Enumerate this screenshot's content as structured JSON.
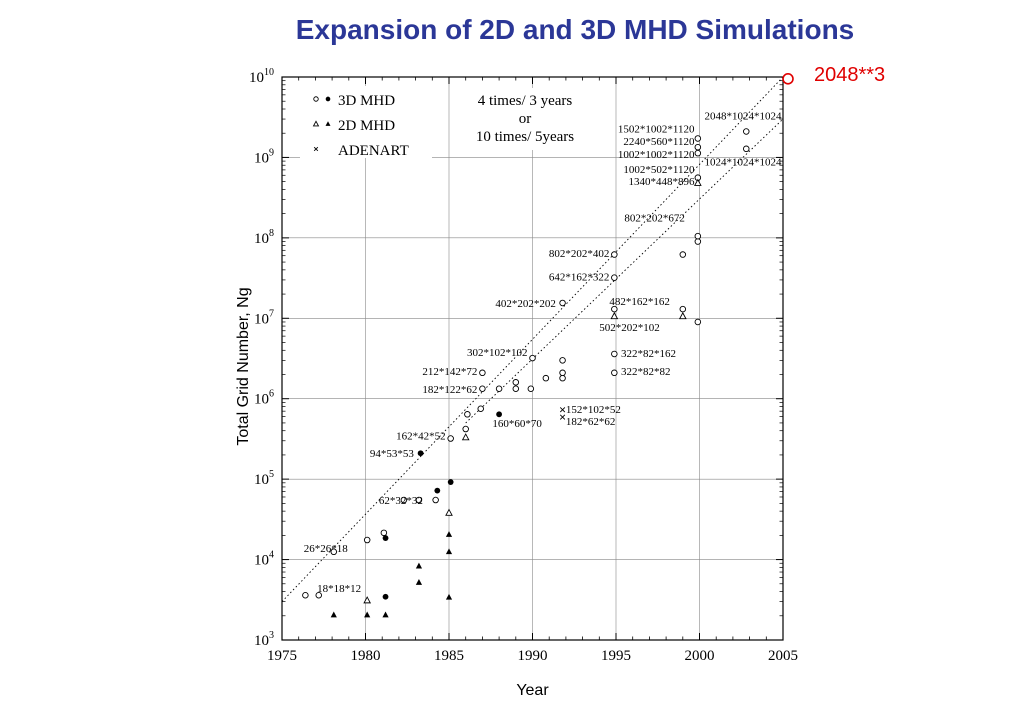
{
  "slide": {
    "title": "Expansion of 2D and 3D MHD Simulations",
    "callout": "2048**3"
  },
  "chart_data": {
    "type": "scatter",
    "title": "Expansion of 2D and 3D MHD Simulations",
    "xlabel": "Year",
    "ylabel": "Total Grid Number, Ng",
    "xlim": [
      1975,
      2005
    ],
    "ylim": [
      1000,
      10000000000
    ],
    "yscale": "log",
    "grid": true,
    "legend_position": "top-left",
    "x_ticks": [
      "1975",
      "1980",
      "1985",
      "1990",
      "1995",
      "2000",
      "2005"
    ],
    "y_ticks": [
      {
        "base": "10",
        "exp": "3",
        "value": 1000
      },
      {
        "base": "10",
        "exp": "4",
        "value": 10000
      },
      {
        "base": "10",
        "exp": "5",
        "value": 100000
      },
      {
        "base": "10",
        "exp": "6",
        "value": 1000000
      },
      {
        "base": "10",
        "exp": "7",
        "value": 10000000
      },
      {
        "base": "10",
        "exp": "8",
        "value": 100000000
      },
      {
        "base": "10",
        "exp": "9",
        "value": 1000000000
      },
      {
        "base": "10",
        "exp": "10",
        "value": 10000000000
      }
    ],
    "legend": [
      {
        "label": "3D MHD",
        "symbols": [
          "open-circle",
          "filled-circle"
        ]
      },
      {
        "label": "2D MHD",
        "symbols": [
          "open-triangle",
          "filled-triangle"
        ]
      },
      {
        "label": "ADENART",
        "symbols": [
          "cross"
        ]
      }
    ],
    "annotation": [
      "4 times/ 3 years",
      "or",
      "10 times/ 5years"
    ],
    "trend_lines": [
      {
        "x": [
          1975,
          2005
        ],
        "y": [
          3000,
          10000000000
        ]
      },
      {
        "x": [
          1986,
          2005
        ],
        "y": [
          500000,
          3000000000
        ]
      }
    ],
    "series": [
      {
        "name": "3D MHD",
        "marker": "open-circle",
        "points": [
          [
            1976.4,
            3600
          ],
          [
            1977.2,
            3600
          ],
          [
            1978.1,
            12500
          ],
          [
            1980.1,
            17500
          ],
          [
            1981.1,
            21500
          ],
          [
            1982.3,
            55000
          ],
          [
            1983.2,
            55000
          ],
          [
            1984.2,
            55000
          ],
          [
            1985.1,
            320000
          ],
          [
            1986.0,
            420000
          ],
          [
            1986.1,
            640000
          ],
          [
            1986.9,
            750000
          ],
          [
            1987.0,
            1330000
          ],
          [
            1987.0,
            2100000
          ],
          [
            1988.0,
            1330000
          ],
          [
            1989.0,
            1600000
          ],
          [
            1989.0,
            1330000
          ],
          [
            1989.9,
            1330000
          ],
          [
            1990.0,
            3200000
          ],
          [
            1990.8,
            1800000
          ],
          [
            1991.8,
            1800000
          ],
          [
            1991.8,
            2100000
          ],
          [
            1991.8,
            3000000
          ],
          [
            1991.8,
            15500000
          ],
          [
            1994.9,
            2100000
          ],
          [
            1994.9,
            3600000
          ],
          [
            1994.9,
            13000000
          ],
          [
            1994.9,
            32000000
          ],
          [
            1994.9,
            62000000
          ],
          [
            1999.0,
            62000000
          ],
          [
            1999.0,
            13000000
          ],
          [
            1999.9,
            9000000
          ],
          [
            1999.9,
            90000000
          ],
          [
            1999.9,
            105000000
          ],
          [
            1999.9,
            560000000
          ],
          [
            1999.9,
            1130000000
          ],
          [
            1999.9,
            1340000000
          ],
          [
            1999.9,
            1720000000
          ],
          [
            2002.8,
            1280000000
          ],
          [
            2002.8,
            2100000000
          ]
        ]
      },
      {
        "name": "3D MHD (filled)",
        "marker": "filled-circle",
        "points": [
          [
            1981.2,
            3450
          ],
          [
            1981.2,
            18500
          ],
          [
            1983.3,
            210000
          ],
          [
            1984.3,
            72000
          ],
          [
            1985.1,
            92000
          ],
          [
            1988.0,
            640000
          ]
        ]
      },
      {
        "name": "2D MHD",
        "marker": "open-triangle",
        "points": [
          [
            1980.1,
            3100
          ],
          [
            1985.0,
            38000
          ],
          [
            1986.0,
            330000
          ],
          [
            1994.9,
            10600000
          ],
          [
            1999.0,
            10600000
          ],
          [
            1999.9,
            480000000
          ]
        ]
      },
      {
        "name": "2D MHD (filled)",
        "marker": "filled-triangle",
        "points": [
          [
            1978.1,
            2050
          ],
          [
            1980.1,
            2050
          ],
          [
            1981.2,
            2050
          ],
          [
            1983.2,
            5200
          ],
          [
            1983.2,
            8300
          ],
          [
            1985.0,
            3400
          ],
          [
            1985.0,
            12500
          ],
          [
            1985.0,
            20500
          ]
        ]
      },
      {
        "name": "ADENART",
        "marker": "cross",
        "points": [
          [
            1991.8,
            730000
          ],
          [
            1991.8,
            590000
          ]
        ]
      },
      {
        "name": "2048**3",
        "marker": "callout-circle",
        "points": [
          [
            2005.3,
            9500000000
          ]
        ]
      }
    ],
    "labels": [
      {
        "text": "18*18*12",
        "x": 1977.1,
        "y": 4400,
        "anchor": "start"
      },
      {
        "text": "26*26*18",
        "x": 1976.3,
        "y": 14000,
        "anchor": "start"
      },
      {
        "text": "62*32*32",
        "x": 1980.8,
        "y": 55000,
        "anchor": "start"
      },
      {
        "text": "94*53*53",
        "x": 1982.9,
        "y": 210000,
        "anchor": "end"
      },
      {
        "text": "162*42*52",
        "x": 1984.8,
        "y": 350000,
        "anchor": "end"
      },
      {
        "text": "182*122*62",
        "x": 1986.7,
        "y": 1330000,
        "anchor": "end"
      },
      {
        "text": "212*142*72",
        "x": 1986.7,
        "y": 2200000,
        "anchor": "end"
      },
      {
        "text": "302*102*102",
        "x": 1989.7,
        "y": 3800000,
        "anchor": "end"
      },
      {
        "text": "160*60*70",
        "x": 1987.6,
        "y": 500000,
        "anchor": "start"
      },
      {
        "text": "152*102*52",
        "x": 1992.0,
        "y": 740000,
        "anchor": "start"
      },
      {
        "text": "182*62*62",
        "x": 1992.0,
        "y": 530000,
        "anchor": "start"
      },
      {
        "text": "402*202*202",
        "x": 1991.4,
        "y": 15500000,
        "anchor": "end"
      },
      {
        "text": "322*82*82",
        "x": 1995.3,
        "y": 2200000,
        "anchor": "start"
      },
      {
        "text": "322*82*162",
        "x": 1995.3,
        "y": 3700000,
        "anchor": "start"
      },
      {
        "text": "502*202*102",
        "x": 1994.0,
        "y": 7800000,
        "anchor": "start"
      },
      {
        "text": "482*162*162",
        "x": 1994.6,
        "y": 16500000,
        "anchor": "start"
      },
      {
        "text": "642*162*322",
        "x": 1994.6,
        "y": 33000000,
        "anchor": "end"
      },
      {
        "text": "802*202*402",
        "x": 1994.6,
        "y": 65000000,
        "anchor": "end"
      },
      {
        "text": "802*202*672",
        "x": 1995.5,
        "y": 180000000,
        "anchor": "start"
      },
      {
        "text": "1340*448*896",
        "x": 1999.7,
        "y": 510000000,
        "anchor": "end"
      },
      {
        "text": "1002*502*1120",
        "x": 1999.7,
        "y": 720000000,
        "anchor": "end"
      },
      {
        "text": "1002*1002*1120",
        "x": 1999.7,
        "y": 1110000000,
        "anchor": "end"
      },
      {
        "text": "2240*560*1120",
        "x": 1999.7,
        "y": 1600000000,
        "anchor": "end"
      },
      {
        "text": "1502*1002*1120",
        "x": 1999.7,
        "y": 2300000000,
        "anchor": "end"
      },
      {
        "text": "1024*1024*1024",
        "x": 2000.3,
        "y": 890000000,
        "anchor": "start"
      },
      {
        "text": "2048*1024*1024",
        "x": 2000.3,
        "y": 3300000000,
        "anchor": "start"
      }
    ]
  }
}
